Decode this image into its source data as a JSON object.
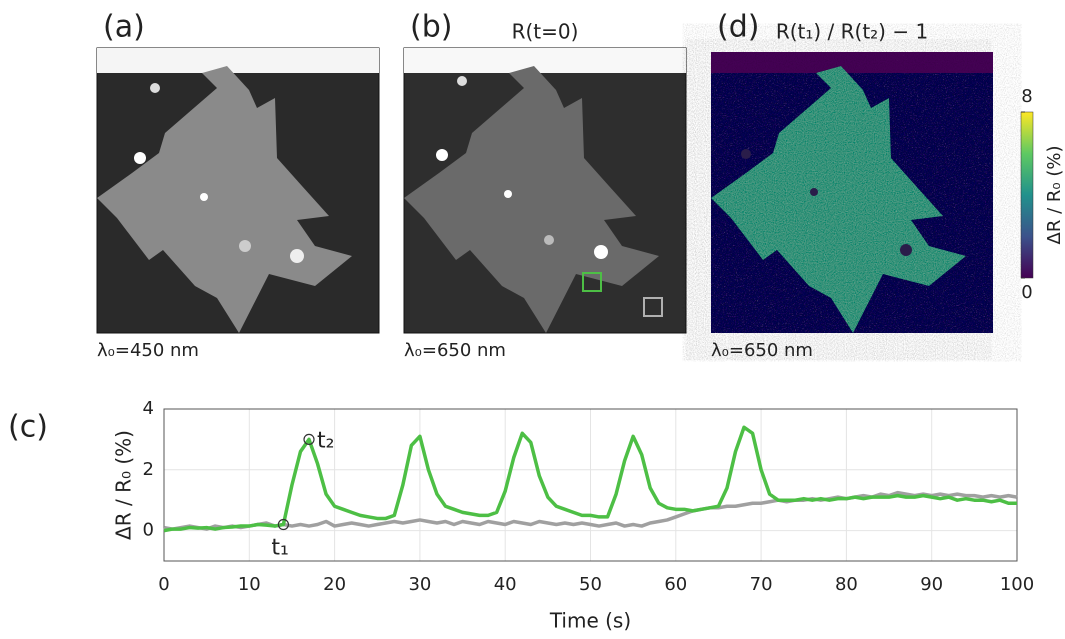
{
  "panels": [
    {
      "label": "(a)",
      "caption": "λ₀=450 nm"
    },
    {
      "label": "(b)",
      "title": "R(t=0)",
      "caption": "λ₀=650 nm"
    },
    {
      "label": "(d)",
      "title": "R(t₁) / R(t₂) − 1",
      "caption": "λ₀=650 nm"
    }
  ],
  "colorbar": {
    "label": "ΔR / R₀ (%)",
    "lim": [
      0,
      8
    ],
    "ticks": [
      0,
      8
    ]
  },
  "chart_data": {
    "type": "line",
    "panel_label": "(c)",
    "xlabel": "Time (s)",
    "ylabel": "ΔR / R₀ (%)",
    "x": [
      0,
      1,
      2,
      3,
      4,
      5,
      6,
      7,
      8,
      9,
      10,
      11,
      12,
      13,
      14,
      15,
      16,
      17,
      18,
      19,
      20,
      21,
      22,
      23,
      24,
      25,
      26,
      27,
      28,
      29,
      30,
      31,
      32,
      33,
      34,
      35,
      36,
      37,
      38,
      39,
      40,
      41,
      42,
      43,
      44,
      45,
      46,
      47,
      48,
      49,
      50,
      51,
      52,
      53,
      54,
      55,
      56,
      57,
      58,
      59,
      60,
      61,
      62,
      63,
      64,
      65,
      66,
      67,
      68,
      69,
      70,
      71,
      72,
      73,
      74,
      75,
      76,
      77,
      78,
      79,
      80,
      81,
      82,
      83,
      84,
      85,
      86,
      87,
      88,
      89,
      90,
      91,
      92,
      93,
      94,
      95,
      96,
      97,
      98,
      99,
      100
    ],
    "series": [
      {
        "color": "#4dbf45",
        "values": [
          0.0,
          0.05,
          0.05,
          0.1,
          0.08,
          0.1,
          0.05,
          0.1,
          0.12,
          0.15,
          0.15,
          0.2,
          0.18,
          0.15,
          0.2,
          1.5,
          2.6,
          3.0,
          2.2,
          1.2,
          0.8,
          0.7,
          0.6,
          0.5,
          0.45,
          0.4,
          0.4,
          0.5,
          1.5,
          2.8,
          3.1,
          2.0,
          1.2,
          0.8,
          0.7,
          0.6,
          0.55,
          0.5,
          0.5,
          0.6,
          1.3,
          2.4,
          3.2,
          2.9,
          1.8,
          1.1,
          0.8,
          0.7,
          0.6,
          0.5,
          0.5,
          0.45,
          0.45,
          1.2,
          2.3,
          3.1,
          2.5,
          1.4,
          0.9,
          0.75,
          0.7,
          0.7,
          0.65,
          0.7,
          0.75,
          0.8,
          1.4,
          2.6,
          3.4,
          3.2,
          2.0,
          1.2,
          1.0,
          1.0,
          1.0,
          1.05,
          1.0,
          1.05,
          1.0,
          1.05,
          1.05,
          1.1,
          1.05,
          1.1,
          1.1,
          1.1,
          1.15,
          1.1,
          1.1,
          1.15,
          1.1,
          1.05,
          1.1,
          1.0,
          1.05,
          1.0,
          1.0,
          0.95,
          1.0,
          0.9,
          0.9
        ]
      },
      {
        "color": "#a0a0a0",
        "values": [
          0.1,
          0.05,
          0.1,
          0.15,
          0.1,
          0.05,
          0.15,
          0.1,
          0.15,
          0.1,
          0.15,
          0.2,
          0.25,
          0.15,
          0.2,
          0.15,
          0.2,
          0.15,
          0.2,
          0.3,
          0.15,
          0.2,
          0.25,
          0.2,
          0.15,
          0.2,
          0.25,
          0.3,
          0.25,
          0.3,
          0.35,
          0.3,
          0.25,
          0.3,
          0.2,
          0.3,
          0.25,
          0.2,
          0.3,
          0.25,
          0.2,
          0.3,
          0.25,
          0.2,
          0.3,
          0.25,
          0.2,
          0.25,
          0.2,
          0.25,
          0.2,
          0.15,
          0.2,
          0.25,
          0.15,
          0.2,
          0.15,
          0.25,
          0.3,
          0.35,
          0.45,
          0.55,
          0.65,
          0.7,
          0.75,
          0.75,
          0.8,
          0.8,
          0.85,
          0.9,
          0.9,
          0.95,
          1.0,
          0.95,
          1.0,
          1.0,
          1.05,
          1.0,
          1.05,
          1.1,
          1.05,
          1.1,
          1.15,
          1.1,
          1.2,
          1.15,
          1.25,
          1.2,
          1.15,
          1.2,
          1.15,
          1.2,
          1.15,
          1.2,
          1.15,
          1.15,
          1.1,
          1.15,
          1.1,
          1.15,
          1.1
        ]
      }
    ],
    "annotations": [
      {
        "text": "t₁",
        "x": 14,
        "y": 0.2
      },
      {
        "text": "t₂",
        "x": 17,
        "y": 3.0
      }
    ],
    "xlim": [
      0,
      100
    ],
    "xticks": [
      0,
      10,
      20,
      30,
      40,
      50,
      60,
      70,
      80,
      90,
      100
    ],
    "ylim": [
      -1,
      4
    ],
    "yticks": [
      0,
      2,
      4
    ],
    "grid": true
  }
}
